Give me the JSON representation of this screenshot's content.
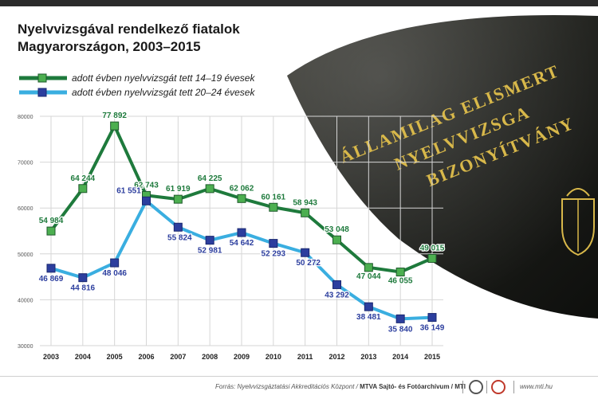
{
  "chart_data": {
    "type": "line",
    "title": "Nyelvvizsgával rendelkező fiatalok\nMagyarországon, 2003–2015",
    "xlabel": "",
    "ylabel": "",
    "x": [
      "2003",
      "2004",
      "2005",
      "2006",
      "2007",
      "2008",
      "2009",
      "2010",
      "2011",
      "2012",
      "2013",
      "2014",
      "2015"
    ],
    "ylim": [
      30000,
      80000
    ],
    "yticks": [
      30000,
      40000,
      50000,
      60000,
      70000,
      80000
    ],
    "grid": true,
    "legend": "top-left",
    "series": [
      {
        "name": "adott évben nyelvvizsgát tett 14–19 évesek",
        "color": "#1e7a3c",
        "marker_color": "#4caf50",
        "values": [
          54984,
          64244,
          77892,
          62743,
          61919,
          64225,
          62062,
          60161,
          58943,
          53048,
          47044,
          46055,
          49015
        ],
        "labels": [
          "54 984",
          "64 244",
          "77 892",
          "62 743",
          "61 919",
          "64 225",
          "62 062",
          "60 161",
          "58 943",
          "53 048",
          "47 044",
          "46 055",
          "49 015"
        ]
      },
      {
        "name": "adott évben nyelvvizsgát tett 20–24 évesek",
        "color": "#3aaee0",
        "marker_color": "#2c3e9e",
        "values": [
          46869,
          44816,
          48046,
          61551,
          55824,
          52981,
          54642,
          52293,
          50272,
          43292,
          38481,
          35840,
          36149
        ],
        "labels": [
          "46 869",
          "44 816",
          "48 046",
          "61 551",
          "55 824",
          "52 981",
          "54 642",
          "52 293",
          "50 272",
          "43 292",
          "38 481",
          "35 840",
          "36 149"
        ]
      }
    ]
  },
  "photo": {
    "lines": [
      "ÁLLAMILAG ELISMERT",
      "NYELVVIZSGA",
      "BIZONYÍTVÁNY"
    ]
  },
  "footer": {
    "source_prefix": "Forrás: Nyelvvizsgáztatási Akkreditációs Központ / ",
    "source_bold": "MTVA Sajtó- és Fotóarchívum / MTI",
    "website": "www.mti.hu"
  }
}
